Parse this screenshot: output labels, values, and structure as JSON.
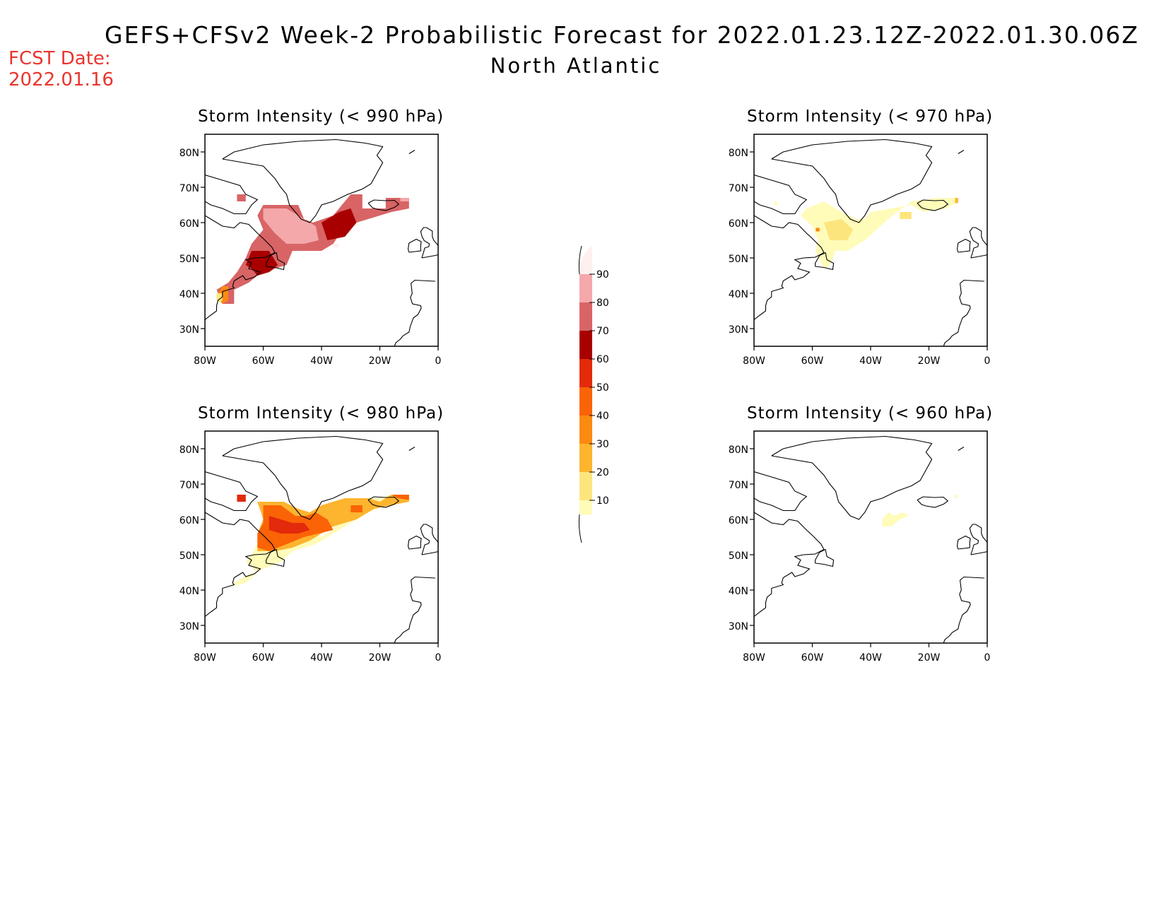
{
  "header": {
    "title": "GEFS+CFSv2 Week-2 Probabilistic Forecast for 2022.01.23.12Z-2022.01.30.06Z",
    "subtitle": "North Atlantic",
    "fcst_label": "FCST Date:",
    "fcst_date": "2022.01.16"
  },
  "panels": [
    {
      "title": "Storm Intensity (< 990 hPa)"
    },
    {
      "title": "Storm Intensity (< 970 hPa)"
    },
    {
      "title": "Storm Intensity (< 980 hPa)"
    },
    {
      "title": "Storm Intensity (< 960 hPa)"
    }
  ],
  "axes": {
    "lat_labels": [
      "80N",
      "70N",
      "60N",
      "50N",
      "40N",
      "30N"
    ],
    "lon_labels": [
      "80W",
      "60W",
      "40W",
      "20W",
      "0"
    ]
  },
  "colorbar": {
    "levels": [
      "10",
      "20",
      "30",
      "40",
      "50",
      "60",
      "70",
      "80",
      "90"
    ],
    "colors": [
      "#fffbb9",
      "#fde57d",
      "#fdb42f",
      "#fb8a10",
      "#fa6306",
      "#e32a0b",
      "#a80000",
      "#d86466",
      "#f4a8aa",
      "#fff0f0"
    ]
  }
}
